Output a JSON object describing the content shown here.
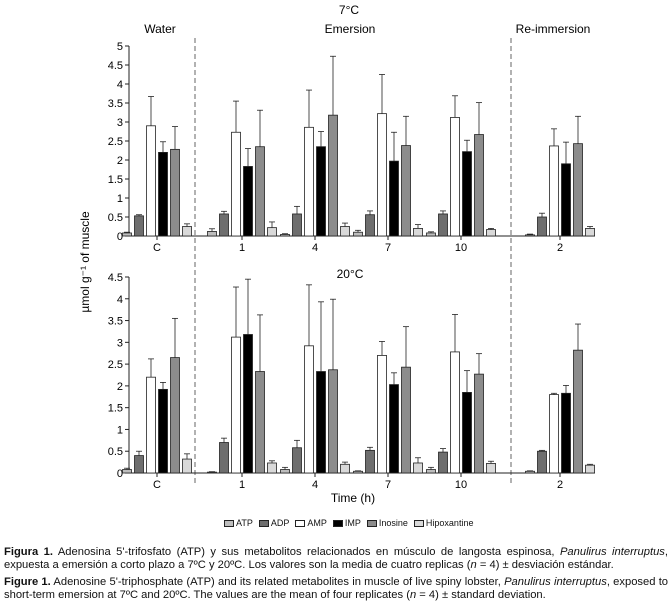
{
  "chart_data": {
    "type": "bar",
    "title": "7°C",
    "ylabel": "µmol g⁻¹ of muscle",
    "xlabel": "Time (h)",
    "legend": [
      "ATP",
      "ADP",
      "AMP",
      "IMP",
      "Inosine",
      "Hipoxantine"
    ],
    "colors": [
      "#bdbdbd",
      "#6e6e6e",
      "#ffffff",
      "#000000",
      "#8c8c8c",
      "#d9d9d9"
    ],
    "section_labels": [
      "Water",
      "Emersion",
      "Re-immersion"
    ],
    "ylim": [
      0,
      5
    ],
    "ticks_top": [
      "0",
      "0.5",
      "1",
      "1.5",
      "2",
      "2.5",
      "3",
      "3.5",
      "4",
      "4.5",
      "5"
    ],
    "ticks_bottom": [
      "0",
      "0.5",
      "1",
      "1.5",
      "2",
      "2.5",
      "3",
      "3.5",
      "4",
      "4.5"
    ],
    "panels": [
      {
        "title": "7°C",
        "ylim": [
          0,
          5
        ],
        "categories": [
          "C",
          "1",
          "4",
          "7",
          "10",
          "2"
        ],
        "series": [
          {
            "name": "ATP",
            "values": [
              0.08,
              0.12,
              0.04,
              0.1,
              0.08,
              0.03
            ],
            "errors": [
              0.02,
              0.07,
              0.02,
              0.05,
              0.03,
              0.02
            ]
          },
          {
            "name": "ADP",
            "values": [
              0.53,
              0.58,
              0.58,
              0.56,
              0.58,
              0.5
            ],
            "errors": [
              0.03,
              0.07,
              0.2,
              0.1,
              0.08,
              0.1
            ]
          },
          {
            "name": "AMP",
            "values": [
              2.9,
              2.73,
              2.86,
              3.22,
              3.12,
              2.37
            ],
            "errors": [
              0.77,
              0.82,
              0.98,
              1.03,
              0.57,
              0.45
            ]
          },
          {
            "name": "IMP",
            "values": [
              2.2,
              1.83,
              2.35,
              1.97,
              2.22,
              1.9
            ],
            "errors": [
              0.28,
              0.47,
              0.4,
              0.76,
              0.3,
              0.57
            ]
          },
          {
            "name": "Inosine",
            "values": [
              2.28,
              2.35,
              3.18,
              2.38,
              2.67,
              2.43
            ],
            "errors": [
              0.6,
              0.96,
              1.55,
              0.77,
              0.84,
              0.72
            ]
          },
          {
            "name": "Hipoxantine",
            "values": [
              0.25,
              0.22,
              0.25,
              0.2,
              0.17,
              0.2
            ],
            "errors": [
              0.07,
              0.15,
              0.09,
              0.1,
              0.03,
              0.05
            ]
          }
        ]
      },
      {
        "title": "20°C",
        "ylim": [
          0,
          4.5
        ],
        "categories": [
          "C",
          "1",
          "4",
          "7",
          "10",
          "2"
        ],
        "series": [
          {
            "name": "ATP",
            "values": [
              0.08,
              0.02,
              0.08,
              0.04,
              0.08,
              0.04
            ],
            "errors": [
              0.03,
              0.01,
              0.05,
              0.01,
              0.05,
              0.01
            ]
          },
          {
            "name": "ADP",
            "values": [
              0.4,
              0.7,
              0.58,
              0.52,
              0.48,
              0.5
            ],
            "errors": [
              0.1,
              0.1,
              0.17,
              0.07,
              0.08,
              0.02
            ]
          },
          {
            "name": "AMP",
            "values": [
              2.2,
              3.12,
              2.92,
              2.7,
              2.78,
              1.8
            ],
            "errors": [
              0.42,
              1.15,
              1.4,
              0.32,
              0.86,
              0.03
            ]
          },
          {
            "name": "IMP",
            "values": [
              1.92,
              3.18,
              2.33,
              2.03,
              1.85,
              1.83
            ],
            "errors": [
              0.16,
              1.27,
              1.6,
              0.27,
              0.5,
              0.18
            ]
          },
          {
            "name": "Inosine",
            "values": [
              2.65,
              2.33,
              2.37,
              2.43,
              2.27,
              2.82
            ],
            "errors": [
              0.9,
              1.3,
              1.62,
              0.93,
              0.47,
              0.6
            ]
          },
          {
            "name": "Hipoxantine",
            "values": [
              0.32,
              0.23,
              0.2,
              0.23,
              0.22,
              0.18
            ],
            "errors": [
              0.12,
              0.05,
              0.05,
              0.12,
              0.05,
              0.02
            ]
          }
        ]
      }
    ]
  },
  "caption": {
    "es": {
      "label": "Figura 1.",
      "text1": " Adenosina 5'-trifosfato (ATP) y sus metabolitos relacionados en músculo de langosta espinosa, ",
      "species": "Panulirus interruptus",
      "text2": ", expuesta a emersión a corto plazo a 7ºC y 20ºC. Los valores son la media de cuatro replicas (",
      "n": "n",
      "text3": " = 4) ± desviación estándar."
    },
    "en": {
      "label": "Figure 1.",
      "text1": " Adenosine 5'-triphosphate (ATP) and its related metabolites in muscle of live spiny lobster, ",
      "species": "Panulirus interruptus",
      "text2": ", exposed to short-term emersion at 7ºC and 20ºC. The values are the mean of four replicates (",
      "n": "n",
      "text3": " = 4) ± standard deviation."
    }
  }
}
